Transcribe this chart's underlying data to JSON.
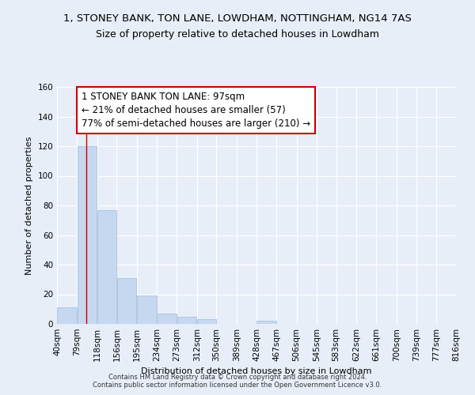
{
  "title": "1, STONEY BANK, TON LANE, LOWDHAM, NOTTINGHAM, NG14 7AS",
  "subtitle": "Size of property relative to detached houses in Lowdham",
  "xlabel": "Distribution of detached houses by size in Lowdham",
  "ylabel": "Number of detached properties",
  "bar_edges": [
    40,
    79,
    118,
    156,
    195,
    234,
    273,
    312,
    350,
    389,
    428,
    467,
    506,
    545,
    583,
    622,
    661,
    700,
    739,
    777,
    816
  ],
  "bar_heights": [
    11,
    120,
    77,
    31,
    19,
    7,
    5,
    3,
    0,
    0,
    2,
    0,
    0,
    0,
    0,
    0,
    0,
    0,
    0,
    0
  ],
  "bar_color": "#c5d8f0",
  "bar_edgecolor": "#a8c4e0",
  "property_size": 97,
  "vline_color": "#cc0000",
  "annotation_text": "1 STONEY BANK TON LANE: 97sqm\n← 21% of detached houses are smaller (57)\n77% of semi-detached houses are larger (210) →",
  "annotation_box_color": "#ffffff",
  "annotation_box_edgecolor": "#cc0000",
  "ylim": [
    0,
    160
  ],
  "yticks": [
    0,
    20,
    40,
    60,
    80,
    100,
    120,
    140,
    160
  ],
  "tick_labels": [
    "40sqm",
    "79sqm",
    "118sqm",
    "156sqm",
    "195sqm",
    "234sqm",
    "273sqm",
    "312sqm",
    "350sqm",
    "389sqm",
    "428sqm",
    "467sqm",
    "506sqm",
    "545sqm",
    "583sqm",
    "622sqm",
    "661sqm",
    "700sqm",
    "739sqm",
    "777sqm",
    "816sqm"
  ],
  "footer_text": "Contains HM Land Registry data © Crown copyright and database right 2024.\nContains public sector information licensed under the Open Government Licence v3.0.",
  "background_color": "#e8eef8",
  "grid_color": "#ffffff",
  "title_fontsize": 9.5,
  "subtitle_fontsize": 9,
  "axis_label_fontsize": 8,
  "tick_fontsize": 7.5,
  "annotation_fontsize": 8.5
}
